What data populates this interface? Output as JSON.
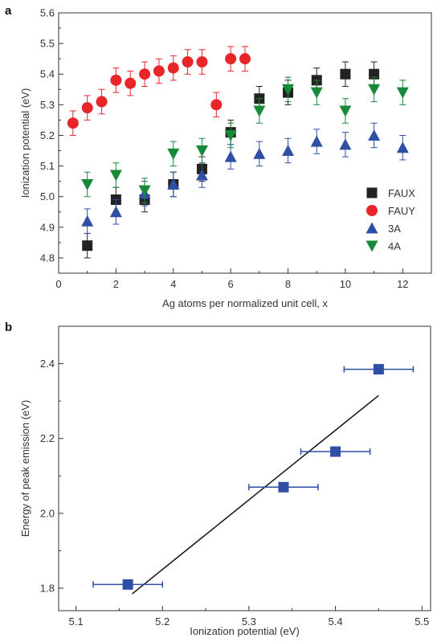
{
  "chart_data": [
    {
      "type": "scatter",
      "panel": "a",
      "xlabel": "Ag atoms per normalized unit cell, x",
      "ylabel": "Ionization potential (eV)",
      "xlim": [
        0,
        13
      ],
      "ylim": [
        4.75,
        5.6
      ],
      "xticks": [
        "0",
        "2",
        "4",
        "6",
        "8",
        "10",
        "12"
      ],
      "yticks": [
        "4.8",
        "4.9",
        "5.0",
        "5.1",
        "5.2",
        "5.3",
        "5.4",
        "5.5",
        "5.6"
      ],
      "legend_position": "right",
      "grid": false,
      "series": [
        {
          "name": "FAUX",
          "marker": "square",
          "color": "#222222",
          "errcolor": "#222222",
          "points": [
            {
              "x": 1,
              "y": 4.84,
              "err": 0.04
            },
            {
              "x": 2,
              "y": 4.99,
              "err": 0.04
            },
            {
              "x": 3,
              "y": 4.99,
              "err": 0.04
            },
            {
              "x": 4,
              "y": 5.04,
              "err": 0.04
            },
            {
              "x": 5,
              "y": 5.09,
              "err": 0.04
            },
            {
              "x": 6,
              "y": 5.21,
              "err": 0.04
            },
            {
              "x": 7,
              "y": 5.32,
              "err": 0.04
            },
            {
              "x": 8,
              "y": 5.34,
              "err": 0.04
            },
            {
              "x": 9,
              "y": 5.38,
              "err": 0.04
            },
            {
              "x": 10,
              "y": 5.4,
              "err": 0.04
            },
            {
              "x": 11,
              "y": 5.4,
              "err": 0.04
            }
          ]
        },
        {
          "name": "FAUY",
          "marker": "circle",
          "color": "#e8262a",
          "errcolor": "#e8262a",
          "points": [
            {
              "x": 0.5,
              "y": 5.24,
              "err": 0.04
            },
            {
              "x": 1,
              "y": 5.29,
              "err": 0.04
            },
            {
              "x": 1.5,
              "y": 5.31,
              "err": 0.04
            },
            {
              "x": 2,
              "y": 5.38,
              "err": 0.04
            },
            {
              "x": 2.5,
              "y": 5.37,
              "err": 0.04
            },
            {
              "x": 3,
              "y": 5.4,
              "err": 0.04
            },
            {
              "x": 3.5,
              "y": 5.41,
              "err": 0.04
            },
            {
              "x": 4,
              "y": 5.42,
              "err": 0.04
            },
            {
              "x": 4.5,
              "y": 5.44,
              "err": 0.04
            },
            {
              "x": 5,
              "y": 5.44,
              "err": 0.04
            },
            {
              "x": 5.5,
              "y": 5.3,
              "err": 0.04
            },
            {
              "x": 6,
              "y": 5.45,
              "err": 0.04
            },
            {
              "x": 6.5,
              "y": 5.45,
              "err": 0.04
            }
          ]
        },
        {
          "name": "3A",
          "marker": "triangle-up",
          "color": "#2f4fa6",
          "errcolor": "#2f4fa6",
          "points": [
            {
              "x": 1,
              "y": 4.92,
              "err": 0.04
            },
            {
              "x": 2,
              "y": 4.95,
              "err": 0.04
            },
            {
              "x": 3,
              "y": 5.01,
              "err": 0.04
            },
            {
              "x": 4,
              "y": 5.04,
              "err": 0.04
            },
            {
              "x": 5,
              "y": 5.07,
              "err": 0.04
            },
            {
              "x": 6,
              "y": 5.13,
              "err": 0.04
            },
            {
              "x": 7,
              "y": 5.14,
              "err": 0.04
            },
            {
              "x": 8,
              "y": 5.15,
              "err": 0.04
            },
            {
              "x": 9,
              "y": 5.18,
              "err": 0.04
            },
            {
              "x": 10,
              "y": 5.17,
              "err": 0.04
            },
            {
              "x": 11,
              "y": 5.2,
              "err": 0.04
            },
            {
              "x": 12,
              "y": 5.16,
              "err": 0.04
            }
          ]
        },
        {
          "name": "4A",
          "marker": "triangle-down",
          "color": "#178a3a",
          "errcolor": "#178a3a",
          "points": [
            {
              "x": 1,
              "y": 5.04,
              "err": 0.04
            },
            {
              "x": 2,
              "y": 5.07,
              "err": 0.04
            },
            {
              "x": 3,
              "y": 5.02,
              "err": 0.04
            },
            {
              "x": 4,
              "y": 5.14,
              "err": 0.04
            },
            {
              "x": 5,
              "y": 5.15,
              "err": 0.04
            },
            {
              "x": 6,
              "y": 5.2,
              "err": 0.04
            },
            {
              "x": 7,
              "y": 5.28,
              "err": 0.04
            },
            {
              "x": 8,
              "y": 5.35,
              "err": 0.04
            },
            {
              "x": 9,
              "y": 5.34,
              "err": 0.04
            },
            {
              "x": 10,
              "y": 5.28,
              "err": 0.04
            },
            {
              "x": 11,
              "y": 5.35,
              "err": 0.04
            },
            {
              "x": 12,
              "y": 5.34,
              "err": 0.04
            }
          ]
        }
      ]
    },
    {
      "type": "scatter",
      "panel": "b",
      "xlabel": "Ionization potential (eV)",
      "ylabel": "Energy of peak emission (eV)",
      "xlim": [
        5.08,
        5.51
      ],
      "ylim": [
        1.74,
        2.5
      ],
      "xticks": [
        "5.1",
        "5.2",
        "5.3",
        "5.4",
        "5.5"
      ],
      "yticks": [
        "1.8",
        "2.0",
        "2.2",
        "2.4"
      ],
      "grid": false,
      "series": [
        {
          "marker": "square",
          "color": "#2f4fa6",
          "errcolor": "#2f4fa6",
          "points": [
            {
              "x": 5.16,
              "y": 1.81,
              "xerr": 0.04
            },
            {
              "x": 5.34,
              "y": 2.07,
              "xerr": 0.04
            },
            {
              "x": 5.4,
              "y": 2.165,
              "xerr": 0.04
            },
            {
              "x": 5.45,
              "y": 2.385,
              "xerr": 0.04
            }
          ]
        }
      ],
      "fit_line": {
        "x": [
          5.165,
          5.45
        ],
        "y": [
          1.785,
          2.315
        ],
        "color": "#111111"
      }
    }
  ]
}
